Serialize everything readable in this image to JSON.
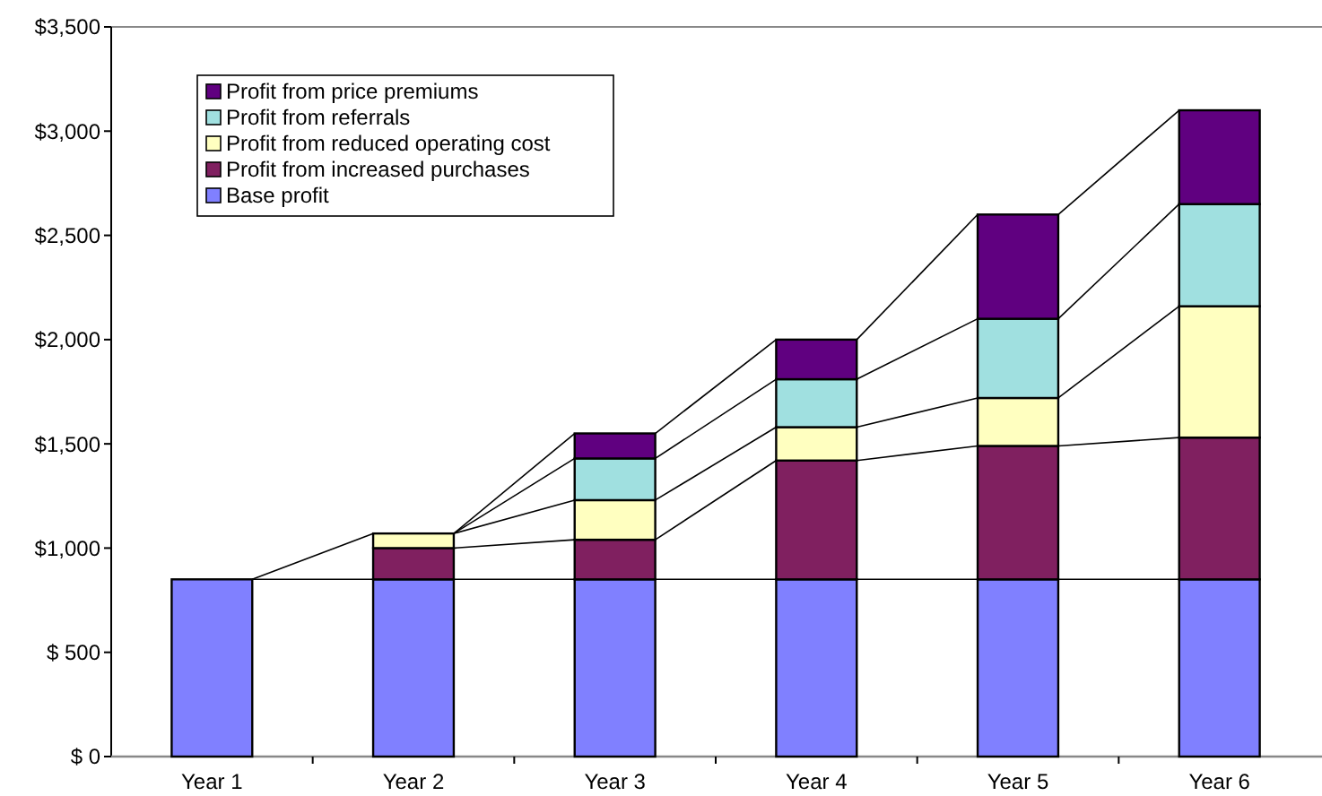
{
  "chart_data": {
    "type": "bar",
    "stacked": true,
    "categories": [
      "Year 1",
      "Year 2",
      "Year 3",
      "Year 4",
      "Year 5",
      "Year 6"
    ],
    "series": [
      {
        "name": "Base profit",
        "color": "#8080ff",
        "values": [
          850,
          850,
          850,
          850,
          850,
          850
        ]
      },
      {
        "name": "Profit from increased purchases",
        "color": "#802060",
        "values": [
          null,
          150,
          190,
          570,
          640,
          680
        ]
      },
      {
        "name": "Profit from reduced operating cost",
        "color": "#ffffc0",
        "values": [
          0,
          70,
          190,
          160,
          230,
          630
        ]
      },
      {
        "name": "Profit from referrals",
        "color": "#a0e0e0",
        "values": [
          null,
          0,
          200,
          230,
          380,
          490
        ]
      },
      {
        "name": "Profit from price premiums",
        "color": "#600080",
        "values": [
          null,
          0,
          120,
          190,
          500,
          450
        ]
      }
    ],
    "ylim": [
      0,
      3500
    ],
    "yticks": [
      {
        "value": 0,
        "label": "$ 0"
      },
      {
        "value": 500,
        "label": "$ 500"
      },
      {
        "value": 1000,
        "label": "$1,000"
      },
      {
        "value": 1500,
        "label": "$1,500"
      },
      {
        "value": 2000,
        "label": "$2,000"
      },
      {
        "value": 2500,
        "label": "$2,500"
      },
      {
        "value": 3000,
        "label": "$3,000"
      },
      {
        "value": 3500,
        "label": "$3,500"
      }
    ],
    "grid": false,
    "legend": "top left"
  }
}
